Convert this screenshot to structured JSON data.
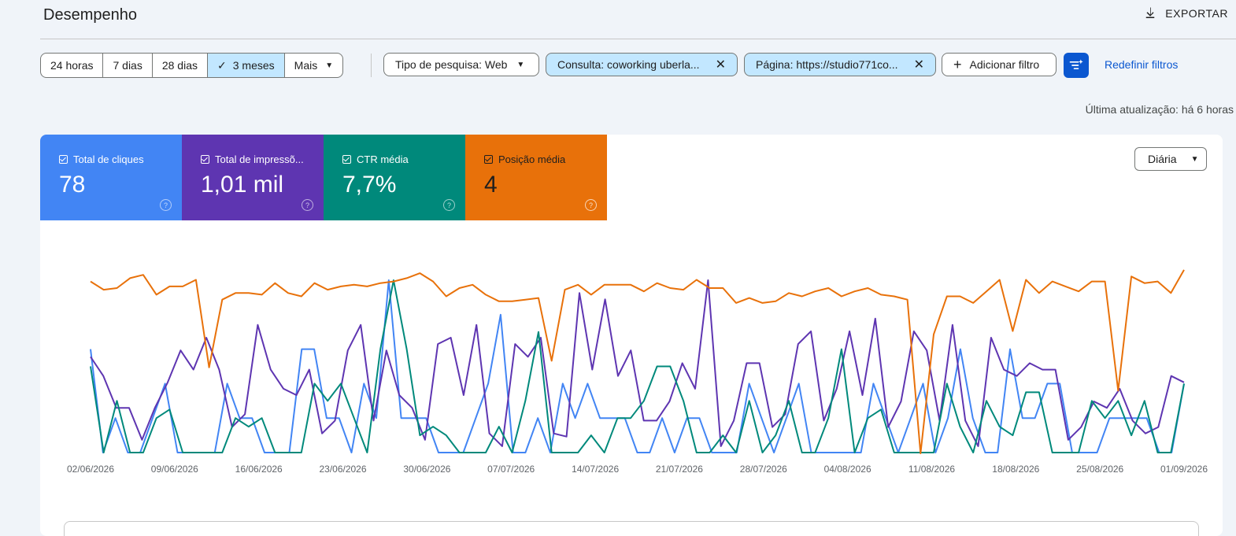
{
  "header": {
    "title": "Desempenho",
    "export_label": "EXPORTAR"
  },
  "date_ranges": [
    {
      "label": "24 horas",
      "selected": false
    },
    {
      "label": "7 dias",
      "selected": false
    },
    {
      "label": "28 dias",
      "selected": false
    },
    {
      "label": "3 meses",
      "selected": true
    },
    {
      "label": "Mais",
      "selected": false
    }
  ],
  "filters": {
    "search_type": "Tipo de pesquisa: Web",
    "query": "Consulta: coworking uberla...",
    "page": "Página: https://studio771co...",
    "add": "Adicionar filtro",
    "reset": "Redefinir filtros"
  },
  "last_update": "Última atualização: há 6 horas",
  "metrics": [
    {
      "label": "Total de cliques",
      "value": "78",
      "color": "#4285f4"
    },
    {
      "label": "Total de impressõ...",
      "value": "1,01 mil",
      "color": "#5e35b1"
    },
    {
      "label": "CTR média",
      "value": "7,7%",
      "color": "#00897b"
    },
    {
      "label": "Posição média",
      "value": "4",
      "color": "#e8710a"
    }
  ],
  "granularity": "Diária",
  "chart_data": {
    "type": "line",
    "x_ticks": [
      "02/06/2026",
      "09/06/2026",
      "16/06/2026",
      "23/06/2026",
      "30/06/2026",
      "07/07/2026",
      "14/07/2026",
      "21/07/2026",
      "28/07/2026",
      "04/08/2026",
      "11/08/2026",
      "18/08/2026",
      "25/08/2026",
      "01/09/2026"
    ],
    "series": [
      {
        "name": "Total de cliques",
        "color": "#4285f4",
        "values": [
          0.6,
          0,
          0.2,
          0,
          0,
          0.2,
          0.4,
          0,
          0,
          0,
          0,
          0.4,
          0.2,
          0.2,
          0,
          0,
          0,
          0.6,
          0.6,
          0.2,
          0.2,
          0,
          0.4,
          0.2,
          1.0,
          0.2,
          0.2,
          0.2,
          0,
          0,
          0,
          0.2,
          0.4,
          0.8,
          0,
          0,
          0.2,
          0,
          0.4,
          0.2,
          0.4,
          0.2,
          0.2,
          0.2,
          0,
          0,
          0.2,
          0,
          0.2,
          0.2,
          0,
          0,
          0,
          0.4,
          0.2,
          0,
          0.2,
          0.4,
          0,
          0,
          0,
          0,
          0,
          0.4,
          0.2,
          0,
          0.2,
          0.4,
          0,
          0.2,
          0.6,
          0.2,
          0,
          0,
          0.6,
          0.2,
          0.2,
          0.4,
          0.4,
          0,
          0,
          0,
          0.2,
          0.2,
          0.2,
          0.2,
          0,
          0,
          0.4
        ]
      },
      {
        "name": "Total de impressões",
        "color": "#5e35b1",
        "values": [
          0.6,
          0.48,
          0.28,
          0.28,
          0.08,
          0.28,
          0.44,
          0.64,
          0.52,
          0.72,
          0.52,
          0.16,
          0.24,
          0.8,
          0.52,
          0.4,
          0.36,
          0.52,
          0.12,
          0.2,
          0.64,
          0.8,
          0.2,
          0.64,
          0.36,
          0.28,
          0.08,
          0.68,
          0.72,
          0.36,
          0.8,
          0.12,
          0.04,
          0.68,
          0.6,
          0.72,
          0.12,
          0.1,
          1.0,
          0.52,
          0.96,
          0.48,
          0.64,
          0.2,
          0.2,
          0.32,
          0.56,
          0.4,
          1.08,
          0.04,
          0.2,
          0.56,
          0.56,
          0.16,
          0.24,
          0.68,
          0.76,
          0.2,
          0.4,
          0.76,
          0.36,
          0.84,
          0.16,
          0.32,
          0.76,
          0.64,
          0.2,
          0.8,
          0.2,
          0.04,
          0.72,
          0.52,
          0.48,
          0.56,
          0.52,
          0.52,
          0.08,
          0.16,
          0.32,
          0.28,
          0.4,
          0.2,
          0.12,
          0.16,
          0.48,
          0.44
        ]
      },
      {
        "name": "CTR média",
        "color": "#00897b",
        "values": [
          0.5,
          0,
          0.3,
          0,
          0,
          0.2,
          0.25,
          0,
          0,
          0,
          0,
          0.2,
          0.15,
          0.2,
          0,
          0,
          0,
          0.4,
          0.3,
          0.4,
          0.2,
          0,
          0.6,
          1.0,
          0.6,
          0.1,
          0.15,
          0.1,
          0,
          0,
          0,
          0.15,
          0,
          0.3,
          0.7,
          0,
          0,
          0,
          0.1,
          0,
          0.2,
          0.2,
          0.3,
          0.5,
          0.5,
          0.3,
          0,
          0,
          0.1,
          0,
          0.3,
          0,
          0.1,
          0.3,
          0,
          0,
          0.2,
          0.6,
          0,
          0.2,
          0.25,
          0,
          0,
          0,
          0,
          0.4,
          0.15,
          0,
          0.3,
          0.15,
          0.1,
          0.35,
          0.35,
          0,
          0,
          0,
          0.3,
          0.2,
          0.3,
          0.1,
          0.3,
          0,
          0,
          0.4
        ]
      },
      {
        "name": "Posição média",
        "color": "#e8710a",
        "values": [
          4.2,
          3.95,
          4.0,
          4.3,
          4.4,
          3.8,
          4.05,
          4.05,
          4.25,
          1.6,
          3.65,
          3.85,
          3.85,
          3.8,
          4.15,
          3.85,
          3.75,
          4.15,
          3.95,
          4.05,
          4.1,
          4.05,
          4.15,
          4.2,
          4.3,
          4.45,
          4.2,
          3.75,
          4.0,
          4.1,
          3.8,
          3.6,
          3.6,
          3.65,
          3.7,
          1.8,
          3.95,
          4.1,
          3.8,
          4.1,
          4.1,
          4.1,
          3.9,
          4.15,
          4.0,
          3.95,
          4.25,
          4.0,
          4.0,
          3.55,
          3.7,
          3.55,
          3.6,
          3.85,
          3.75,
          3.9,
          4.0,
          3.75,
          3.9,
          4.0,
          3.8,
          3.75,
          3.65,
          -1.0,
          2.6,
          3.75,
          3.75,
          3.55,
          3.9,
          4.25,
          2.7,
          4.25,
          3.85,
          4.2,
          4.05,
          3.9,
          4.2,
          4.2,
          0.9,
          4.35,
          4.15,
          4.2,
          3.85,
          4.55
        ]
      }
    ]
  }
}
